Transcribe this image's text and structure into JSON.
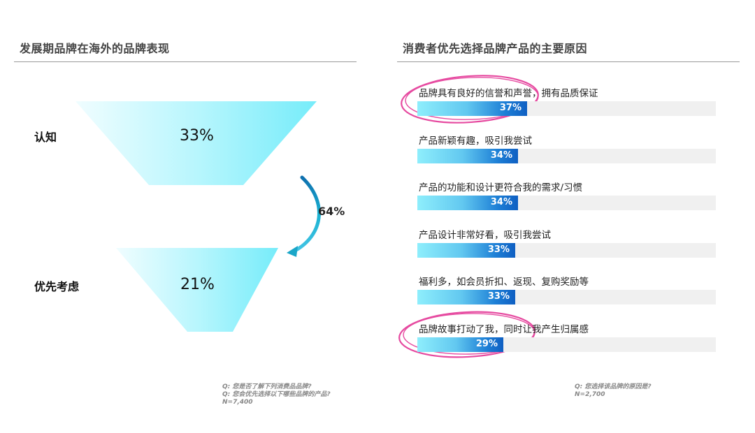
{
  "left_panel": {
    "title": "发展期品牌在海外的品牌表现",
    "stages": [
      {
        "label": "认知",
        "value": "33%"
      },
      {
        "label": "优先考虑",
        "value": "21%"
      }
    ],
    "conversion": "64%",
    "notes": [
      "Q:  您是否了解下列消费品品牌?",
      "Q:  您会优先选择以下哪些品牌的产品?",
      "N=7,400"
    ]
  },
  "right_panel": {
    "title": "消费者优先选择品牌产品的主要原因",
    "notes": [
      "Q:  您选择该品牌的原因是?",
      "N=2,700"
    ]
  },
  "colors": {
    "funnel_light": "#e6fbff",
    "funnel_dark": "#7eeefb",
    "arrow": "#1aa6c8",
    "bar_dark": "#0f5fc2",
    "highlight": "#e64aa0"
  },
  "chart_data": [
    {
      "type": "funnel",
      "title": "发展期品牌在海外的品牌表现",
      "categories": [
        "认知",
        "优先考虑"
      ],
      "values": [
        33,
        21
      ],
      "conversion_rate": 64
    },
    {
      "type": "bar",
      "orientation": "horizontal",
      "title": "消费者优先选择品牌产品的主要原因",
      "categories": [
        "品牌具有良好的信誉和声誉，拥有品质保证",
        "产品新颖有趣，吸引我尝试",
        "产品的功能和设计更符合我的需求/习惯",
        "产品设计非常好看，吸引我尝试",
        "福利多，如会员折扣、返现、复购奖励等",
        "品牌故事打动了我，同时让我产生归属感"
      ],
      "values": [
        37,
        34,
        34,
        33,
        33,
        29
      ],
      "value_labels": [
        "37%",
        "34%",
        "34%",
        "33%",
        "33%",
        "29%"
      ],
      "highlighted": [
        0,
        5
      ],
      "xlim": [
        0,
        100
      ],
      "grid": false
    }
  ]
}
